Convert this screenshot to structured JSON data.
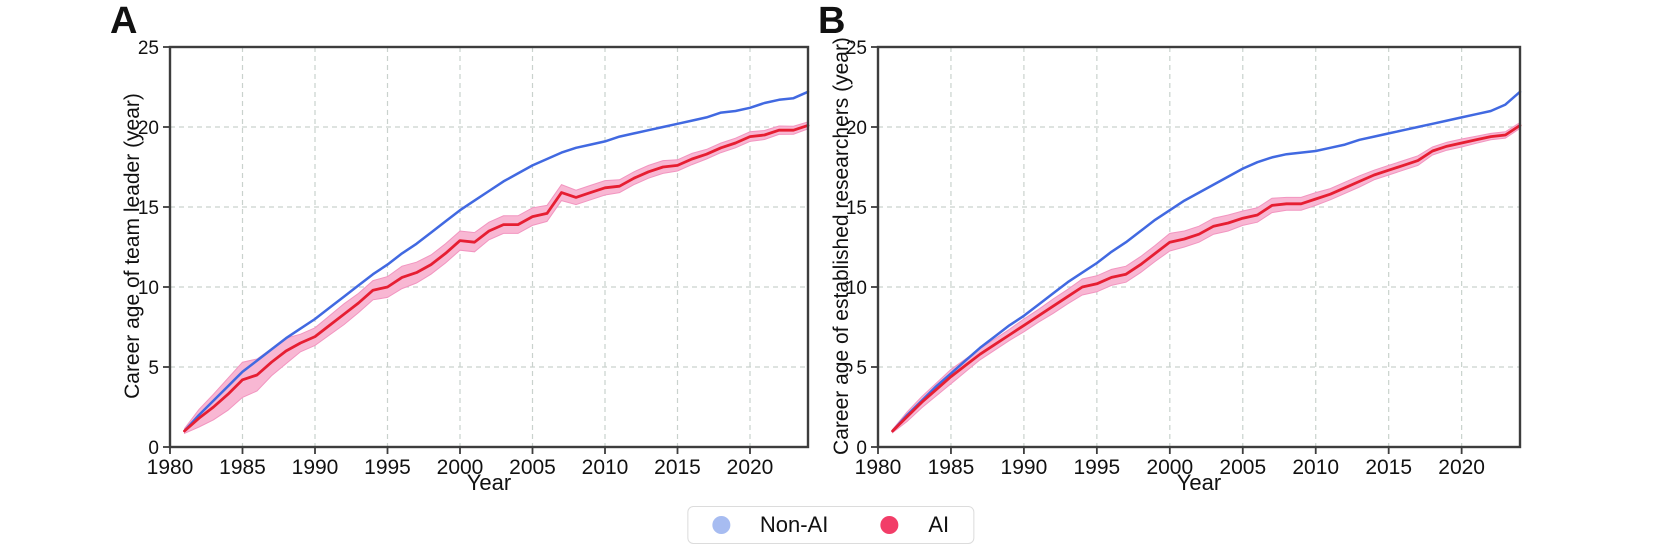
{
  "legend": {
    "position": "bottom-center",
    "items": [
      {
        "label": "Non-AI",
        "marker_color": "#a7bcf1"
      },
      {
        "label": "AI",
        "marker_color": "#f23d68"
      }
    ]
  },
  "colors": {
    "nonai_line": "#4169e1",
    "ai_line": "#e61e32",
    "ai_band_fill": "#f8b7d3",
    "ai_band_edge": "#f295c0",
    "grid": "#c9d2cd",
    "frame": "#3d3d3d",
    "text": "#111111"
  },
  "chart_data": [
    {
      "type": "line",
      "panel_label": "A",
      "title": "",
      "xlabel": "Year",
      "ylabel": "Career age of team leader (year)",
      "xlim": [
        1980,
        2024
      ],
      "ylim": [
        0,
        25
      ],
      "grid": true,
      "x_tick_labels": [
        "1980",
        "1985",
        "1990",
        "1995",
        "2000",
        "2005",
        "2010",
        "2015",
        "2020"
      ],
      "y_tick_labels": [
        "0",
        "5",
        "10",
        "15",
        "20",
        "25"
      ],
      "x": [
        1981,
        1982,
        1983,
        1984,
        1985,
        1986,
        1987,
        1988,
        1989,
        1990,
        1991,
        1992,
        1993,
        1994,
        1995,
        1996,
        1997,
        1998,
        1999,
        2000,
        2001,
        2002,
        2003,
        2004,
        2005,
        2006,
        2007,
        2008,
        2009,
        2010,
        2011,
        2012,
        2013,
        2014,
        2015,
        2016,
        2017,
        2018,
        2019,
        2020,
        2021,
        2022,
        2023,
        2024
      ],
      "series": [
        {
          "name": "Non-AI",
          "color": "#4169e1",
          "values": [
            1.0,
            2.0,
            2.9,
            3.8,
            4.7,
            5.4,
            6.1,
            6.8,
            7.4,
            8.0,
            8.7,
            9.4,
            10.1,
            10.8,
            11.4,
            12.1,
            12.7,
            13.4,
            14.1,
            14.8,
            15.4,
            16.0,
            16.6,
            17.1,
            17.6,
            18.0,
            18.4,
            18.7,
            18.9,
            19.1,
            19.4,
            19.6,
            19.8,
            20.0,
            20.2,
            20.4,
            20.6,
            20.9,
            21.0,
            21.2,
            21.5,
            21.7,
            21.8,
            22.2
          ]
        },
        {
          "name": "AI",
          "color": "#e61e32",
          "band_color": "#f8b7d3",
          "band_edge_color": "#f295c0",
          "values": [
            1.0,
            1.8,
            2.5,
            3.3,
            4.2,
            4.5,
            5.3,
            6.0,
            6.5,
            6.9,
            7.6,
            8.3,
            9.0,
            9.8,
            10.0,
            10.6,
            10.9,
            11.4,
            12.1,
            12.9,
            12.8,
            13.5,
            13.9,
            13.9,
            14.4,
            14.6,
            15.9,
            15.6,
            15.9,
            16.2,
            16.3,
            16.8,
            17.2,
            17.5,
            17.6,
            18.0,
            18.3,
            18.7,
            19.0,
            19.4,
            19.5,
            19.8,
            19.8,
            20.1
          ],
          "band_halfwidth": [
            0.15,
            0.55,
            0.8,
            1.0,
            1.1,
            1.0,
            0.85,
            0.8,
            0.55,
            0.55,
            0.6,
            0.65,
            0.6,
            0.6,
            0.65,
            0.7,
            0.65,
            0.6,
            0.6,
            0.6,
            0.6,
            0.55,
            0.55,
            0.55,
            0.55,
            0.5,
            0.5,
            0.45,
            0.45,
            0.45,
            0.4,
            0.4,
            0.4,
            0.4,
            0.35,
            0.35,
            0.3,
            0.3,
            0.3,
            0.3,
            0.28,
            0.26,
            0.25,
            0.22
          ]
        }
      ]
    },
    {
      "type": "line",
      "panel_label": "B",
      "title": "",
      "xlabel": "Year",
      "ylabel": "Career age of established researchers (year)",
      "xlim": [
        1980,
        2024
      ],
      "ylim": [
        0,
        25
      ],
      "grid": true,
      "x_tick_labels": [
        "1980",
        "1985",
        "1990",
        "1995",
        "2000",
        "2005",
        "2010",
        "2015",
        "2020"
      ],
      "y_tick_labels": [
        "0",
        "5",
        "10",
        "15",
        "20",
        "25"
      ],
      "x": [
        1981,
        1982,
        1983,
        1984,
        1985,
        1986,
        1987,
        1988,
        1989,
        1990,
        1991,
        1992,
        1993,
        1994,
        1995,
        1996,
        1997,
        1998,
        1999,
        2000,
        2001,
        2002,
        2003,
        2004,
        2005,
        2006,
        2007,
        2008,
        2009,
        2010,
        2011,
        2012,
        2013,
        2014,
        2015,
        2016,
        2017,
        2018,
        2019,
        2020,
        2021,
        2022,
        2023,
        2024
      ],
      "series": [
        {
          "name": "Non-AI",
          "color": "#4169e1",
          "values": [
            1.0,
            2.0,
            2.9,
            3.8,
            4.6,
            5.4,
            6.2,
            6.9,
            7.6,
            8.2,
            8.9,
            9.6,
            10.3,
            10.9,
            11.5,
            12.2,
            12.8,
            13.5,
            14.2,
            14.8,
            15.4,
            15.9,
            16.4,
            16.9,
            17.4,
            17.8,
            18.1,
            18.3,
            18.4,
            18.5,
            18.7,
            18.9,
            19.2,
            19.4,
            19.6,
            19.8,
            20.0,
            20.2,
            20.4,
            20.6,
            20.8,
            21.0,
            21.4,
            22.2
          ]
        },
        {
          "name": "AI",
          "color": "#e61e32",
          "band_color": "#f8b7d3",
          "band_edge_color": "#f295c0",
          "values": [
            1.0,
            1.9,
            2.8,
            3.6,
            4.4,
            5.1,
            5.8,
            6.4,
            7.0,
            7.6,
            8.2,
            8.8,
            9.4,
            10.0,
            10.2,
            10.6,
            10.8,
            11.4,
            12.1,
            12.8,
            13.0,
            13.3,
            13.8,
            14.0,
            14.3,
            14.5,
            15.1,
            15.2,
            15.2,
            15.5,
            15.8,
            16.2,
            16.6,
            17.0,
            17.3,
            17.6,
            17.9,
            18.5,
            18.8,
            19.0,
            19.2,
            19.4,
            19.5,
            20.1
          ],
          "band_halfwidth": [
            0.1,
            0.3,
            0.35,
            0.4,
            0.45,
            0.4,
            0.35,
            0.35,
            0.35,
            0.4,
            0.4,
            0.45,
            0.45,
            0.5,
            0.5,
            0.5,
            0.5,
            0.5,
            0.5,
            0.55,
            0.5,
            0.5,
            0.5,
            0.5,
            0.45,
            0.45,
            0.45,
            0.4,
            0.4,
            0.4,
            0.35,
            0.35,
            0.35,
            0.3,
            0.3,
            0.3,
            0.3,
            0.25,
            0.25,
            0.25,
            0.22,
            0.2,
            0.2,
            0.18
          ]
        }
      ]
    }
  ]
}
